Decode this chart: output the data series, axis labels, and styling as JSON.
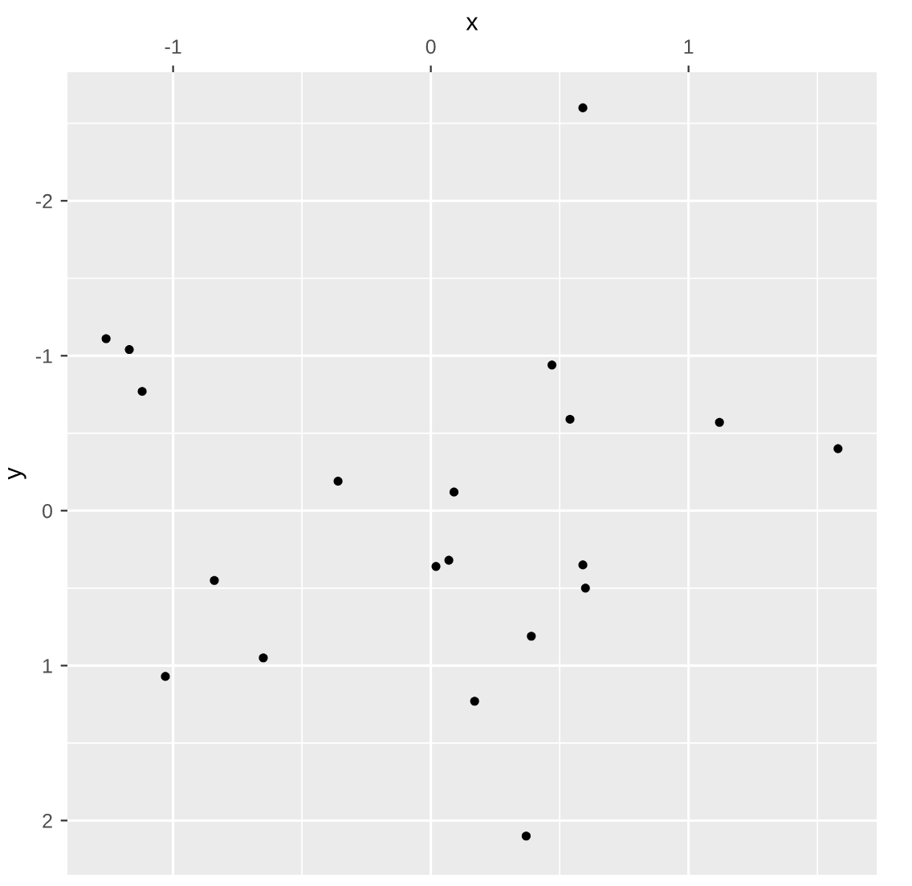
{
  "chart_data": {
    "type": "scatter",
    "xlabel": "x",
    "ylabel": "y",
    "x": [
      0.59,
      -1.26,
      -1.17,
      -1.12,
      0.47,
      0.54,
      1.12,
      1.58,
      -0.36,
      0.09,
      0.02,
      0.07,
      0.59,
      0.6,
      -0.84,
      -0.65,
      -1.03,
      0.39,
      0.17,
      0.37
    ],
    "series": [
      {
        "color": "#000000",
        "values": [
          -2.6,
          -1.11,
          -1.04,
          -0.77,
          -0.94,
          -0.59,
          -0.57,
          -0.4,
          -0.19,
          -0.12,
          0.36,
          0.32,
          0.35,
          0.5,
          0.45,
          0.95,
          1.07,
          0.81,
          1.23,
          2.1
        ]
      }
    ],
    "xlim": [
      -1.41,
      1.73
    ],
    "ylim": [
      2.35,
      -2.83
    ],
    "xticks": [
      -1,
      {
        "value": -0.5,
        "label": null
      },
      0,
      {
        "value": 0.5,
        "label": null
      },
      1,
      {
        "value": 1.5,
        "label": null
      }
    ],
    "yticks": [
      {
        "value": -2.5,
        "label": null
      },
      -2,
      {
        "value": -1.5,
        "label": null
      },
      -1,
      {
        "value": -0.5,
        "label": null
      },
      0,
      {
        "value": 0.5,
        "label": null
      },
      1,
      {
        "value": 1.5,
        "label": null
      },
      2
    ],
    "grid": true,
    "marker": "circle"
  }
}
